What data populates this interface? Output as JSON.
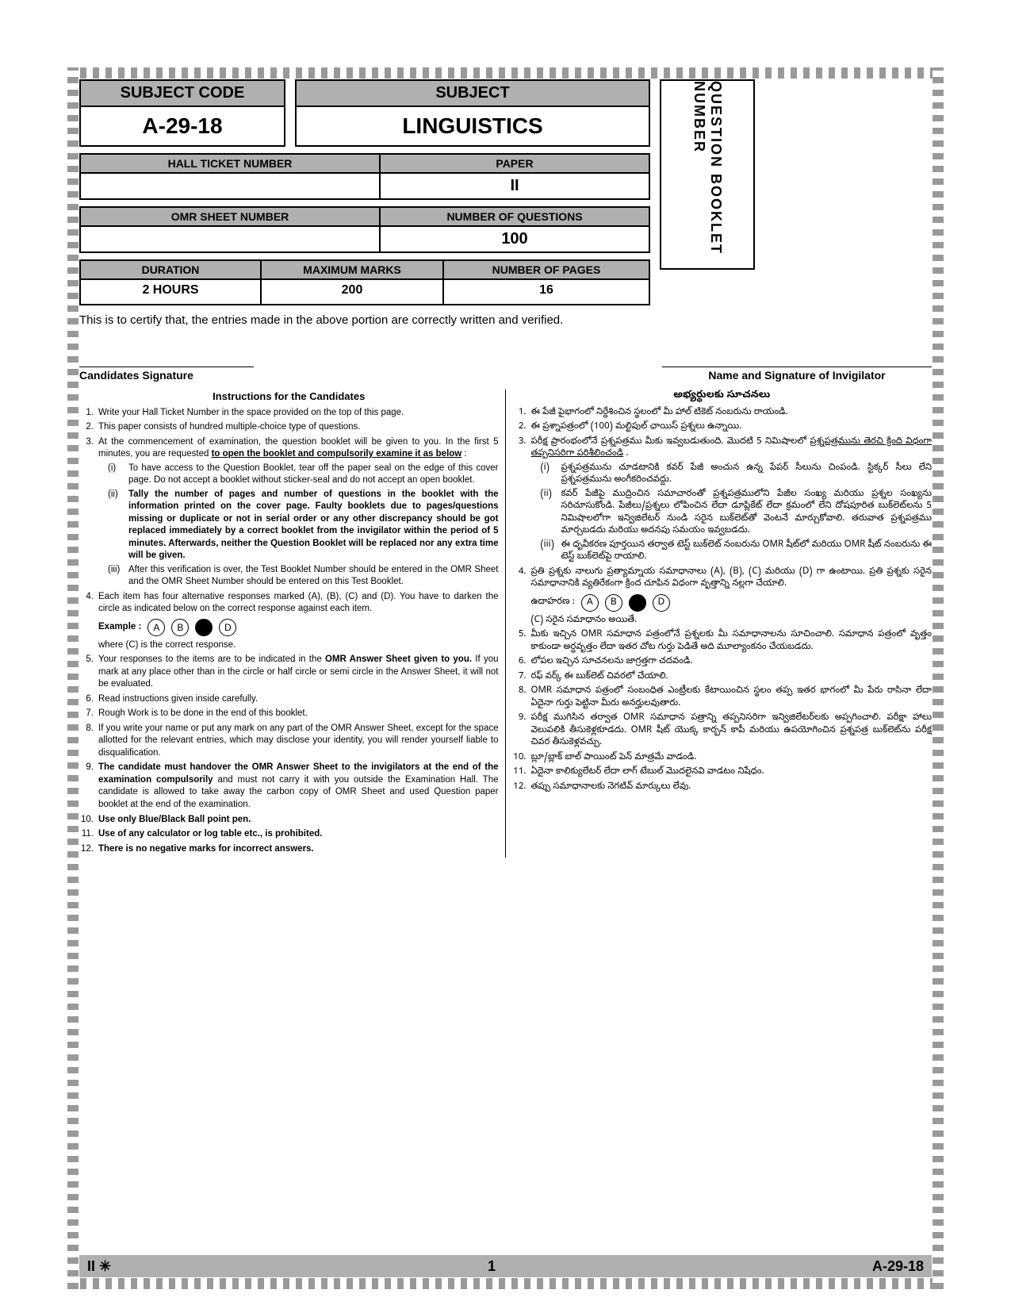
{
  "subject_code_label": "SUBJECT CODE",
  "subject_code_value": "A-29-18",
  "subject_label": "SUBJECT",
  "subject_value": "LINGUISTICS",
  "qbn_label": "QUESTION BOOKLET NUMBER",
  "hall_label": "HALL TICKET NUMBER",
  "hall_value": "",
  "paper_label": "PAPER",
  "paper_value": "II",
  "omr_label": "OMR SHEET NUMBER",
  "omr_value": "",
  "nq_label": "NUMBER OF QUESTIONS",
  "nq_value": "100",
  "dur_label": "DURATION",
  "dur_value": "2 HOURS",
  "mm_label": "MAXIMUM MARKS",
  "mm_value": "200",
  "np_label": "NUMBER OF PAGES",
  "np_value": "16",
  "certify": "This is to certify that, the entries made in the above portion are correctly written and verified.",
  "sig_left": "Candidates Signature",
  "sig_right": "Name and Signature of Invigilator",
  "inst_title_en": "Instructions for the Candidates",
  "inst_title_te": "అభ్యర్థులకు సూచనలు",
  "en": {
    "i1": "Write your Hall Ticket Number in the space provided on the top of this page.",
    "i2": "This paper consists of hundred multiple-choice type of questions.",
    "i3": "At the commencement of examination, the question booklet will be given to you. In the first 5 minutes, you are requested ",
    "i3b": "to open the booklet and compulsorily examine it as below",
    "i3c": " :",
    "i3_1": "To have access to the Question Booklet, tear off the paper seal on the edge of this cover page. Do not accept a booklet without sticker-seal and do not accept an open booklet.",
    "i3_2": "Tally the number of pages and number of questions in the booklet with the information printed on the cover page. Faulty booklets due to pages/questions missing or duplicate or not in serial order or any other discrepancy should be got replaced immediately by a correct booklet from the invigilator within the period of 5 minutes. Afterwards, neither the Question Booklet will be replaced nor any extra time will be given.",
    "i3_3": "After this verification is over, the Test Booklet Number should be entered in the OMR Sheet and the OMR Sheet Number should be entered on this Test Booklet.",
    "i4": "Each item has four alternative responses marked (A), (B), (C) and (D). You have to darken the circle as indicated below on the correct response against each item.",
    "example_label": "Example :",
    "i4b": "where (C) is the correct response.",
    "i5": "Your responses to the items are to be indicated in the ",
    "i5b": "OMR Answer Sheet given to you.",
    "i5c": " If you mark at any place other than in the circle or half circle or semi circle in the Answer Sheet, it will not be evaluated.",
    "i6": "Read instructions given inside carefully.",
    "i7": "Rough Work is to be done in the end of this booklet.",
    "i8": "If you write your name or put any mark on any part of the OMR Answer Sheet, except for the space allotted for the relevant entries, which may disclose your identity, you will render yourself liable to disqualification.",
    "i9a": "The candidate must handover the OMR Answer Sheet to the invigilators at the end of the examination compulsorily",
    "i9b": " and must not carry it with you outside the Examination Hall. The candidate is allowed to take away the carbon copy of OMR Sheet and used Question paper booklet at the end of the examination.",
    "i10": "Use only Blue/Black Ball point pen.",
    "i11": "Use of any calculator or log table etc., is prohibited.",
    "i12": "There is no negative marks for incorrect answers."
  },
  "te": {
    "i1": "ఈ పేజీ పైభాగంలో నిర్దేశించిన స్థలంలో మీ హాల్ టికెట్ నంబరును రాయండి.",
    "i2": "ఈ ప్రశ్నాపత్రంలో (100) మల్టిపుల్ ఛాయిస్ ప్రశ్నలు ఉన్నాయి.",
    "i3": "పరీక్ష ప్రారంభంలోనే ప్రశ్నపత్రము మీకు ఇవ్వబడుతుంది. మొదటి 5 నిమిషాలలో ",
    "i3b": "ప్రశ్నపత్రమును తెరచి క్రింది విధంగా తప్పనిసరిగా పరిశీలించండి",
    "i3c": " .",
    "i3_1": "ప్రశ్నపత్రమును చూడటానికి కవర్ పేజీ అంచున ఉన్న పేపర్ సీలును చింపండి. స్టిక్కర్ సీలు లేని ప్రశ్నపత్రమును అంగీకరించవద్దు.",
    "i3_2": "కవర్ పేజీపై ముద్రించిన సమాచారంతో ప్రశ్నపత్రములోని పేజీల సంఖ్య మరియు ప్రశ్నల సంఖ్యను సరిచూసుకోండి. పేజీలు/ప్రశ్నలు లోపించిన లేదా డూప్లికేట్ లేదా క్రమంలో లేని దోషపూరిత బుక్‌లెట్‌లను 5 నిమిషాలలోగా ఇన్విజిలేటర్ నుండి సరైన బుక్‌లెట్‌తో వెంటనే మార్చుకోవాలి. తరువాత ప్రశ్నపత్రము మార్చబడదు మరియు అదనపు సమయం ఇవ్వబడదు.",
    "i3_3": "ఈ ధృవీకరణ పూర్తయిన తర్వాత టెస్ట్ బుక్‌లెట్ నంబరును OMR షీట్‌లో మరియు OMR షీట్ నంబరును ఈ టెస్ట్ బుక్‌లెట్‌పై రాయాలి.",
    "i4": "ప్రతి ప్రశ్నకు నాలుగు ప్రత్యామ్నాయ సమాధానాలు (A), (B), (C) మరియు (D) గా ఉంటాయి. ప్రతి ప్రశ్నకు సరైన సమాధానానికి వ్యతిరేకంగా క్రింద చూపిన విధంగా వృత్తాన్ని నల్లగా చేయాలి.",
    "example_label": "ఉదాహరణ :",
    "i4b": "(C) సరైన సమాధానం అయితే.",
    "i5": "మీకు ఇచ్చిన OMR సమాధాన పత్రంలోనే ప్రశ్నలకు మీ సమాధానాలను సూచించాలి. సమాధాన పత్రంలో వృత్తం కాకుండా అర్ధవృత్తం లేదా ఇతర చోట గుర్తు పెడితే అది మూల్యాంకనం చేయబడదు.",
    "i6": "లోపల ఇచ్చిన సూచనలను జాగ్రత్తగా చదవండి.",
    "i7": "రఫ్ వర్క్ ఈ బుక్‌లెట్ చివరలో చేయాలి.",
    "i8": "OMR సమాధాన పత్రంలో సంబంధిత ఎంట్రీలకు కేటాయించిన స్థలం తప్ప ఇతర భాగంలో మీ పేరు రాసినా లేదా ఏదైనా గుర్తు పెట్టినా మీరు అనర్హులవుతారు.",
    "i9": "పరీక్ష ముగిసిన తర్వాత OMR సమాధాన పత్రాన్ని తప్పనిసరిగా ఇన్విజిలేటర్‌లకు అప్పగించాలి. పరీక్షా హాలు వెలుపలికి తీసుకెళ్లకూడదు. OMR షీట్ యొక్క కార్బన్ కాపీ మరియు ఉపయోగించిన ప్రశ్నపత్ర బుక్‌లెట్‌ను పరీక్ష చివర తీసుకెళ్లవచ్చు.",
    "i10": "బ్లూ/బ్లాక్ బాల్ పాయింట్ పెన్ మాత్రమే వాడండి.",
    "i11": "ఏదైనా కాలిక్యులేటర్ లేదా లాగ్ టేబుల్ మొదలైనవి వాడటం నిషేధం.",
    "i12": "తప్పు సమాధానాలకు నెగటివ్ మార్కులు లేవు."
  },
  "footer_left": "II ✳",
  "footer_center": "1",
  "footer_right": "A-29-18",
  "options": [
    "A",
    "B",
    "C",
    "D"
  ],
  "correct_idx": 2,
  "colors": {
    "header_bg": "#b0b0b0",
    "border": "#000000"
  }
}
